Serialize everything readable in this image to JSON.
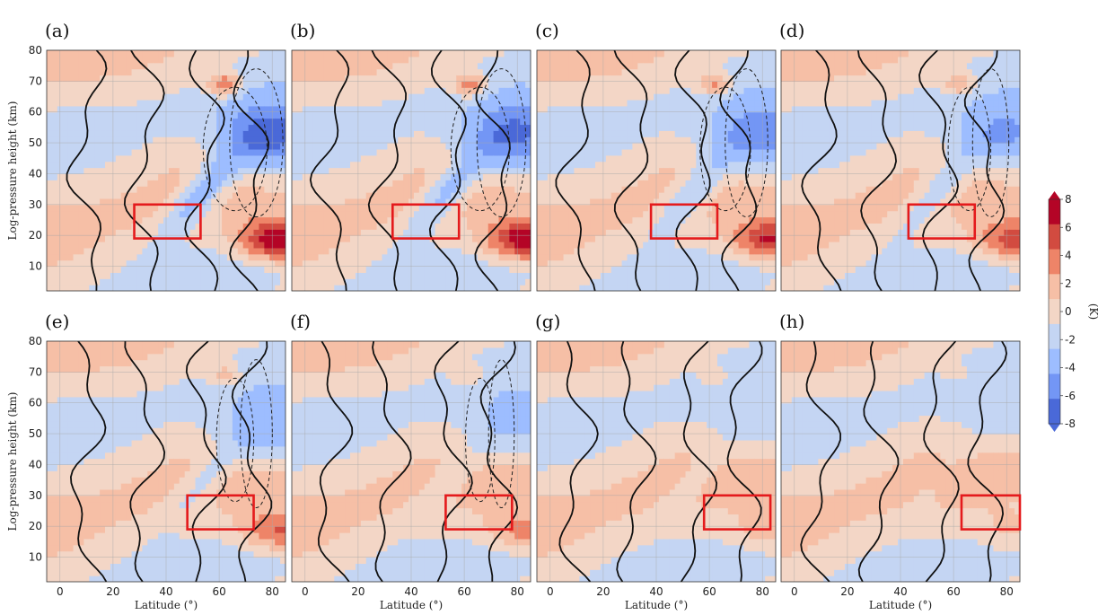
{
  "chart_data": {
    "type": "heatmap",
    "xlabel": "Latitude (°)",
    "ylabel": "Log-pressure height (km)",
    "xlim": [
      -5,
      85
    ],
    "ylim": [
      2,
      80
    ],
    "xticks": [
      0,
      20,
      40,
      60,
      80
    ],
    "yticks": [
      10,
      20,
      30,
      40,
      50,
      60,
      70,
      80
    ],
    "grid": true,
    "colorbar": {
      "unit": "(K)",
      "ticks": [
        "8",
        "6",
        "4",
        "2",
        "0",
        "-2",
        "-4",
        "-6",
        "-8"
      ],
      "levels": [
        8,
        6,
        4,
        2,
        0,
        -2,
        -4,
        -6,
        -8
      ],
      "colors": [
        "#b40426",
        "#d24b40",
        "#ee8468",
        "#f6bfa6",
        "#f3d6c6",
        "#c4d5f3",
        "#9dbdff",
        "#7396f5",
        "#4a69d8"
      ],
      "placement": "right"
    },
    "panels": [
      {
        "label": "(a)",
        "box_lat": [
          28,
          53
        ],
        "box_z": [
          19,
          30
        ],
        "strength": 1.0
      },
      {
        "label": "(b)",
        "box_lat": [
          33,
          58
        ],
        "box_z": [
          19,
          30
        ],
        "strength": 0.9
      },
      {
        "label": "(c)",
        "box_lat": [
          38,
          63
        ],
        "box_z": [
          19,
          30
        ],
        "strength": 0.75
      },
      {
        "label": "(d)",
        "box_lat": [
          43,
          68
        ],
        "box_z": [
          19,
          30
        ],
        "strength": 0.6
      },
      {
        "label": "(e)",
        "box_lat": [
          48,
          73
        ],
        "box_z": [
          19,
          30
        ],
        "strength": 0.5
      },
      {
        "label": "(f)",
        "box_lat": [
          53,
          78
        ],
        "box_z": [
          19,
          30
        ],
        "strength": 0.35
      },
      {
        "label": "(g)",
        "box_lat": [
          58,
          83
        ],
        "box_z": [
          19,
          30
        ],
        "strength": 0.22
      },
      {
        "label": "(h)",
        "box_lat": [
          63,
          88
        ],
        "box_z": [
          19,
          30
        ],
        "strength": 0.15
      }
    ]
  }
}
